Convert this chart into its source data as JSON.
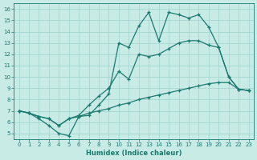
{
  "xlabel": "Humidex (Indice chaleur)",
  "xlim": [
    -0.5,
    23.5
  ],
  "ylim": [
    4.5,
    16.5
  ],
  "xticks": [
    0,
    1,
    2,
    3,
    4,
    5,
    6,
    7,
    8,
    9,
    10,
    11,
    12,
    13,
    14,
    15,
    16,
    17,
    18,
    19,
    20,
    21,
    22,
    23
  ],
  "yticks": [
    5,
    6,
    7,
    8,
    9,
    10,
    11,
    12,
    13,
    14,
    15,
    16
  ],
  "bg_color": "#c8ebe6",
  "line_color": "#1a7a6e",
  "grid_color": "#9ed4cc",
  "line1_x": [
    0,
    1,
    2,
    3,
    4,
    5,
    6,
    7,
    8,
    9,
    10,
    11,
    12,
    13,
    14,
    15,
    16,
    17,
    18,
    19,
    20,
    21,
    22,
    23
  ],
  "line1_y": [
    7.0,
    6.8,
    6.3,
    5.7,
    5.0,
    4.8,
    6.5,
    6.6,
    7.5,
    8.5,
    13.0,
    12.6,
    14.5,
    15.7,
    13.2,
    15.7,
    15.5,
    15.2,
    15.5,
    14.4,
    12.6,
    10.0,
    8.9,
    8.8
  ],
  "line2_x": [
    0,
    1,
    2,
    3,
    4,
    5,
    6,
    7,
    8,
    9,
    10,
    11,
    12,
    13,
    14,
    15,
    16,
    17,
    18,
    19,
    20,
    21,
    22,
    23
  ],
  "line2_y": [
    7.0,
    6.8,
    6.5,
    6.3,
    5.7,
    6.3,
    6.6,
    7.5,
    8.3,
    9.0,
    10.5,
    9.8,
    12.0,
    11.8,
    12.0,
    12.5,
    13.0,
    13.2,
    13.2,
    12.8,
    12.6,
    10.0,
    8.9,
    8.8
  ],
  "line3_x": [
    0,
    1,
    2,
    3,
    4,
    5,
    6,
    7,
    8,
    9,
    10,
    11,
    12,
    13,
    14,
    15,
    16,
    17,
    18,
    19,
    20,
    21,
    22,
    23
  ],
  "line3_y": [
    7.0,
    6.8,
    6.5,
    6.3,
    5.7,
    6.3,
    6.5,
    6.8,
    7.0,
    7.2,
    7.5,
    7.7,
    8.0,
    8.2,
    8.4,
    8.6,
    8.8,
    9.0,
    9.2,
    9.4,
    9.5,
    9.5,
    8.9,
    8.8
  ]
}
